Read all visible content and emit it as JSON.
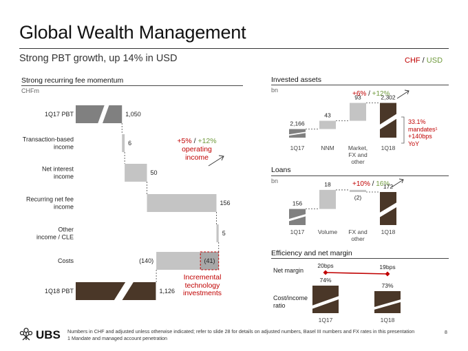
{
  "title": "Global Wealth Management",
  "subtitle": "Strong PBT growth, up 14% in USD",
  "currency_legend": {
    "chf": "CHF",
    "sep": "/",
    "usd": "USD"
  },
  "colors": {
    "dark": "#4a3728",
    "gray": "#808080",
    "light": "#c4c4c4",
    "red": "#c00000",
    "green": "#6f9a3c"
  },
  "left": {
    "title": "Strong recurring fee momentum",
    "unit": "CHFm",
    "callout": {
      "pct_chf": "+5%",
      "sep": "/",
      "pct_usd": "+12%",
      "line1": "operating",
      "line2": "income"
    },
    "incremental": {
      "line1": "Incremental",
      "line2": "technology",
      "line3": "investments"
    }
  },
  "invested": {
    "title": "Invested assets",
    "unit": "bn",
    "change": {
      "chf": "+6%",
      "sep": "/",
      "usd": "+12%"
    },
    "note": {
      "line1": "33.1%",
      "line2": "mandates¹",
      "line3": "+140bps",
      "line4": "YoY"
    }
  },
  "loans": {
    "title": "Loans",
    "unit": "bn",
    "change": {
      "chf": "+10%",
      "sep": "/",
      "usd": "16%"
    }
  },
  "efficiency": {
    "title": "Efficiency and net margin",
    "row1_label": "Net margin",
    "row2_line1": "Cost/income",
    "row2_line2": "ratio"
  },
  "chart_data": [
    {
      "type": "bar",
      "subtype": "waterfall",
      "title": "Strong recurring fee momentum",
      "unit": "CHFm",
      "categories": [
        "1Q17 PBT",
        "Transaction-based income",
        "Net interest income",
        "Recurring net fee income",
        "Other income / CLE",
        "Costs",
        "1Q18 PBT"
      ],
      "category_lines": [
        [
          "1Q17 PBT"
        ],
        [
          "Transaction-based",
          "income"
        ],
        [
          "Net interest",
          "income"
        ],
        [
          "Recurring net fee",
          "income"
        ],
        [
          "Other",
          "income / CLE"
        ],
        [
          "Costs"
        ],
        [
          "1Q18 PBT"
        ]
      ],
      "values": [
        1050,
        6,
        50,
        156,
        5,
        -140,
        1126
      ],
      "labels": [
        "1,050",
        "6",
        "50",
        "156",
        "5",
        "(140)",
        "1,126"
      ],
      "kinds": [
        "total",
        "delta",
        "delta",
        "delta",
        "delta",
        "delta",
        "total"
      ],
      "highlight": {
        "value": -41,
        "label": "(41)"
      }
    },
    {
      "type": "bar",
      "subtype": "waterfall",
      "title": "Invested assets",
      "unit": "bn",
      "categories": [
        "1Q17",
        "NNM",
        "Market, FX and other",
        "1Q18"
      ],
      "category_lines": [
        [
          "1Q17"
        ],
        [
          "NNM"
        ],
        [
          "Market,",
          "FX and",
          "other"
        ],
        [
          "1Q18"
        ]
      ],
      "values": [
        2166,
        43,
        93,
        2302
      ],
      "labels": [
        "2,166",
        "43",
        "93",
        "2,302"
      ],
      "kinds": [
        "total",
        "delta",
        "delta",
        "total"
      ]
    },
    {
      "type": "bar",
      "subtype": "waterfall",
      "title": "Loans",
      "unit": "bn",
      "categories": [
        "1Q17",
        "Volume",
        "FX and other",
        "1Q18"
      ],
      "category_lines": [
        [
          "1Q17"
        ],
        [
          "Volume"
        ],
        [
          "FX and",
          "other"
        ],
        [
          "1Q18"
        ]
      ],
      "values": [
        156,
        18,
        -2,
        172
      ],
      "labels": [
        "156",
        "18",
        "(2)",
        "172"
      ],
      "kinds": [
        "total",
        "delta",
        "delta",
        "total"
      ]
    },
    {
      "type": "line",
      "title": "Net margin",
      "categories": [
        "1Q17",
        "1Q18"
      ],
      "values": [
        20,
        19
      ],
      "labels": [
        "20bps",
        "19bps"
      ]
    },
    {
      "type": "bar",
      "title": "Cost/income ratio",
      "categories": [
        "1Q17",
        "1Q18"
      ],
      "values": [
        74,
        73
      ],
      "labels": [
        "74%",
        "73%"
      ]
    }
  ],
  "footnote": {
    "line1": "Numbers in CHF and adjusted unless otherwise indicated; refer to slide 28 for details on adjusted numbers, Basel III numbers and FX rates in this presentation",
    "line2": "1 Mandate and managed account penetration"
  },
  "logo_text": "UBS",
  "page_number": "8"
}
